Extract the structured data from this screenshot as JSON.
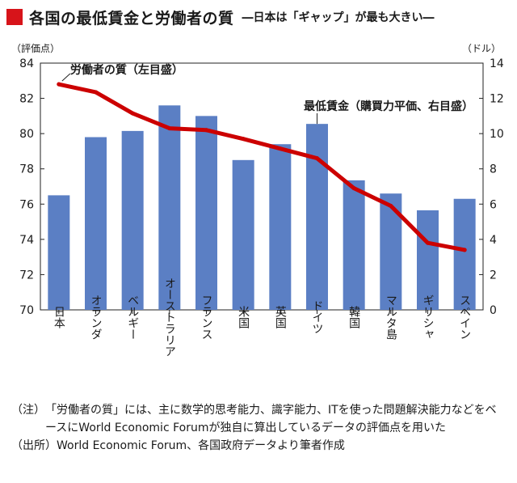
{
  "header": {
    "title": "各国の最低賃金と労働者の質",
    "subtitle": "―日本は「ギャップ」が最も大きい―"
  },
  "chart_data": {
    "type": "bar+line",
    "categories": [
      "日本",
      "オランダ",
      "ベルギー",
      "オーストラリア",
      "フランス",
      "米国",
      "英国",
      "ドイツ",
      "韓国",
      "マルタ島",
      "ギリシャ",
      "スペイン"
    ],
    "left_axis": {
      "label": "（評価点）",
      "min": 70,
      "max": 84,
      "ticks": [
        70,
        72,
        74,
        76,
        78,
        80,
        82,
        84
      ]
    },
    "right_axis": {
      "label": "（ドル）",
      "min": 0,
      "max": 14,
      "ticks": [
        0,
        2,
        4,
        6,
        8,
        10,
        12,
        14
      ]
    },
    "series": [
      {
        "name": "最低賃金（購買力平価、右目盛）",
        "type": "bar",
        "axis": "right",
        "color": "#5b7fc4",
        "values": [
          6.5,
          9.8,
          10.15,
          11.6,
          11.0,
          8.5,
          9.4,
          10.55,
          7.35,
          6.6,
          5.65,
          6.3
        ]
      },
      {
        "name": "労働者の質（左目盛）",
        "type": "line",
        "axis": "left",
        "color": "#cc0000",
        "values": [
          82.8,
          82.35,
          81.15,
          80.3,
          80.2,
          79.7,
          79.15,
          78.6,
          76.9,
          75.9,
          73.8,
          73.4
        ]
      }
    ],
    "annotations": {
      "line_label": "労働者の質（左目盛）",
      "bar_label": "最低賃金（購買力平価、右目盛）"
    }
  },
  "notes": {
    "note_tag": "（注）",
    "note_text": "「労働者の質」には、主に数学的思考能力、識字能力、ITを使った問題解決能力などをベースにWorld Economic Forumが独自に算出しているデータの評価点を用いた",
    "source_tag": "（出所）",
    "source_text": "World Economic Forum、各国政府データより筆者作成"
  }
}
